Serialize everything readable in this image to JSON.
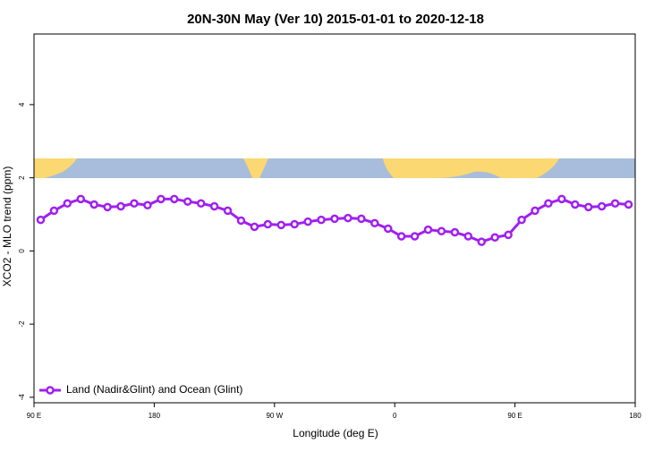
{
  "chart_data": {
    "type": "line",
    "title": "20N-30N May (Ver 10)   2015-01-01 to 2020-12-18",
    "x_label": "Longitude (deg E)",
    "y_label": "XCO2 - MLO trend (ppm)",
    "x": [
      95,
      105,
      115,
      125,
      135,
      145,
      155,
      165,
      175,
      185,
      195,
      205,
      215,
      225,
      235,
      245,
      255,
      265,
      275,
      285,
      295,
      305,
      315,
      325,
      335,
      345,
      355,
      365,
      375,
      385,
      395,
      405,
      415,
      425,
      435,
      445,
      455,
      465,
      475,
      485,
      495,
      505,
      515,
      525,
      535
    ],
    "series": [
      {
        "name": "Land (Nadir&Glint) and Ocean (Glint)",
        "color": "#a020f0",
        "values": [
          0.85,
          1.1,
          1.3,
          1.42,
          1.27,
          1.2,
          1.22,
          1.3,
          1.25,
          1.42,
          1.42,
          1.35,
          1.3,
          1.22,
          1.1,
          0.83,
          0.66,
          0.73,
          0.71,
          0.73,
          0.8,
          0.85,
          0.88,
          0.9,
          0.88,
          0.76,
          0.61,
          0.4,
          0.4,
          0.58,
          0.54,
          0.51,
          0.4,
          0.25,
          0.37,
          0.44,
          0.85,
          1.1,
          1.3,
          1.42,
          1.27,
          1.2,
          1.22,
          1.3,
          1.27
        ]
      }
    ],
    "xlim": [
      90,
      540
    ],
    "xticks": [
      {
        "value": 90,
        "label": "90 E"
      },
      {
        "value": 180,
        "label": "180"
      },
      {
        "value": 270,
        "label": "90 W"
      },
      {
        "value": 360,
        "label": "0"
      },
      {
        "value": 450,
        "label": "90 E"
      },
      {
        "value": 540,
        "label": "180"
      }
    ],
    "ylim": [
      -4.15,
      5.93
    ],
    "yticks": [
      -4,
      -2,
      0,
      2,
      4
    ],
    "legend": "bottom-left"
  }
}
